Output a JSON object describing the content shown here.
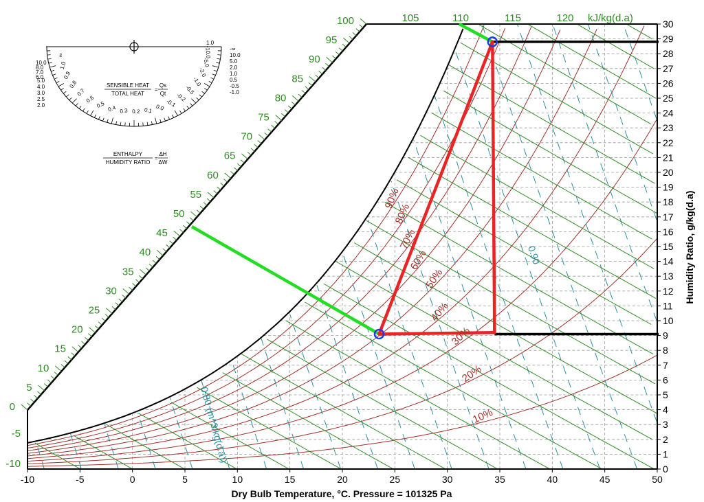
{
  "chart_data": {
    "type": "psychrometric",
    "title": "",
    "xlabel": "Dry Bulb Temperature, °C. Pressure = 101325 Pa",
    "ylabel": "Humidity Ratio, g/kg(d.a)",
    "xlim": [
      -10,
      50
    ],
    "ylim": [
      0,
      30
    ],
    "x_ticks": [
      "-10",
      "-5",
      "0",
      "5",
      "10",
      "15",
      "20",
      "25",
      "30",
      "35",
      "40",
      "45",
      "50"
    ],
    "y_ticks": [
      "0",
      "1",
      "2",
      "3",
      "4",
      "5",
      "6",
      "7",
      "8",
      "9",
      "10",
      "11",
      "12",
      "13",
      "14",
      "15",
      "16",
      "17",
      "18",
      "19",
      "20",
      "21",
      "22",
      "23",
      "24",
      "25",
      "26",
      "27",
      "28",
      "29",
      "30"
    ],
    "enthalpy_unit": "kJ/kg(d.a)",
    "enthalpy_labels_side": [
      "-10",
      "-5",
      "0",
      "5",
      "10",
      "15",
      "20",
      "25",
      "30",
      "35",
      "40",
      "45",
      "50",
      "55",
      "60",
      "65",
      "70",
      "75",
      "80",
      "85",
      "90",
      "95",
      "100"
    ],
    "enthalpy_labels_top": [
      "105",
      "110",
      "115",
      "120"
    ],
    "relative_humidity_pct": [
      10,
      20,
      30,
      40,
      50,
      60,
      70,
      80,
      90,
      100
    ],
    "relative_humidity_labels": [
      "10%",
      "20%",
      "30%",
      "40%",
      "50%",
      "60%",
      "70%",
      "80%",
      "90%"
    ],
    "specific_volume_labels": [
      "0.80 (m^3/kg(d.a))",
      "0.90"
    ],
    "points": [
      {
        "tdb": 23.5,
        "w": 9.1
      },
      {
        "tdb": 34.3,
        "w": 28.8
      }
    ],
    "process_triangle": [
      {
        "tdb": 23.5,
        "w": 9.1
      },
      {
        "tdb": 34.3,
        "w": 28.8
      },
      {
        "tdb": 34.5,
        "w": 9.2
      }
    ],
    "enthalpy_marker_lines": [
      {
        "enthalpy": 46,
        "from_point": 0
      },
      {
        "enthalpy": 109,
        "from_point": 1
      }
    ],
    "humidity_ratio_marker_lines": [
      9.1,
      28.8
    ],
    "grid": true,
    "colors": {
      "enthalpy": "#2e8b22",
      "relative_humidity": "#a0302a",
      "specific_volume": "#2e8fa0",
      "process": "#e82424",
      "marker": "#22dd22",
      "points": "#1a3ee0",
      "grid": "#9a9a9a"
    }
  },
  "protractor": {
    "shr_text_num": "SENSIBLE HEAT",
    "shr_text_den": "TOTAL HEAT",
    "shr_eq_num": "Qs",
    "shr_eq_den": "Qt",
    "eh_text_num": "ENTHALPY",
    "eh_text_den": "HUMIDITY RATIO",
    "eh_eq_num": "ΔH",
    "eh_eq_den": "ΔW",
    "eq_sign": "=",
    "left_ticks": [
      "∞",
      "1.0",
      "0.9",
      "0.8",
      "0.7",
      "0.6",
      "0.5",
      "0.4",
      "0.3",
      "0.2",
      "0.1",
      "0.0",
      "-0.1",
      "-0.2",
      "-0.5",
      "-1.0",
      "-2.0",
      "-5.0",
      "-10.0"
    ],
    "right_ticks": [
      "1.0",
      "-∞",
      "10.0",
      "5.0",
      "2.0",
      "1.0",
      "0.5",
      "-0.5",
      "-1.0"
    ],
    "bottom_ticks": [
      "10.0",
      "8.0",
      "7.0",
      "6.0",
      "5.0",
      "4.0",
      "3.0",
      "2.5",
      "2.0"
    ]
  }
}
